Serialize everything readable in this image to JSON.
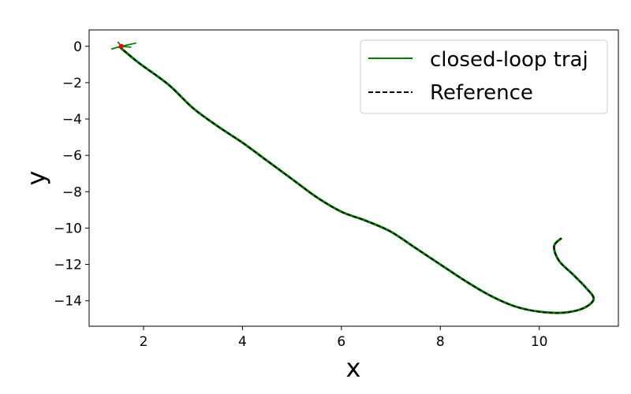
{
  "chart_data": {
    "type": "line",
    "title": "",
    "xlabel": "x",
    "ylabel": "y",
    "xlim": [
      0.9,
      11.6
    ],
    "ylim": [
      -15.4,
      0.9
    ],
    "xticks": [
      2,
      4,
      6,
      8,
      10
    ],
    "yticks": [
      0,
      -2,
      -4,
      -6,
      -8,
      -10,
      -12,
      -14
    ],
    "xtick_labels": [
      "2",
      "4",
      "6",
      "8",
      "10"
    ],
    "ytick_labels": [
      "0",
      "−2",
      "−4",
      "−6",
      "−8",
      "−10",
      "−12",
      "−14"
    ],
    "grid": false,
    "legend_position": "top-right",
    "series": [
      {
        "name": "closed-loop traj",
        "style": "solid",
        "color": "#008000",
        "x": [
          1.5,
          1.9,
          2.5,
          3.0,
          3.5,
          4.0,
          4.5,
          5.0,
          5.5,
          6.0,
          6.5,
          7.0,
          7.5,
          8.0,
          8.5,
          9.0,
          9.5,
          10.0,
          10.5,
          10.9,
          11.1,
          10.95,
          10.7,
          10.4,
          10.3,
          10.45
        ],
        "y": [
          0.0,
          -0.9,
          -2.1,
          -3.4,
          -4.4,
          -5.3,
          -6.3,
          -7.3,
          -8.3,
          -9.1,
          -9.6,
          -10.2,
          -11.1,
          -12.0,
          -12.9,
          -13.7,
          -14.3,
          -14.6,
          -14.65,
          -14.4,
          -13.9,
          -13.3,
          -12.6,
          -11.8,
          -11.0,
          -10.55
        ]
      },
      {
        "name": "Reference",
        "style": "dashed",
        "color": "#000000",
        "x": [
          1.5,
          1.9,
          2.5,
          3.0,
          3.5,
          4.0,
          4.5,
          5.0,
          5.5,
          6.0,
          6.5,
          7.0,
          7.5,
          8.0,
          8.5,
          9.0,
          9.5,
          10.0,
          10.5,
          10.9,
          11.1,
          10.95,
          10.7,
          10.4,
          10.3,
          10.45
        ],
        "y": [
          0.0,
          -0.9,
          -2.1,
          -3.4,
          -4.4,
          -5.3,
          -6.3,
          -7.3,
          -8.3,
          -9.1,
          -9.6,
          -10.2,
          -11.1,
          -12.0,
          -12.9,
          -13.7,
          -14.3,
          -14.6,
          -14.65,
          -14.4,
          -13.9,
          -13.3,
          -12.6,
          -11.8,
          -11.0,
          -10.55
        ]
      }
    ],
    "start_marker": {
      "x": 1.55,
      "y": 0.0,
      "color": "#ff0000"
    },
    "start_artifact": {
      "color": "#008000",
      "x": [
        1.35,
        1.55,
        1.48,
        1.55,
        1.85,
        1.55,
        1.75
      ],
      "y": [
        -0.15,
        0.0,
        0.25,
        0.0,
        0.18,
        0.0,
        -0.05
      ]
    }
  }
}
